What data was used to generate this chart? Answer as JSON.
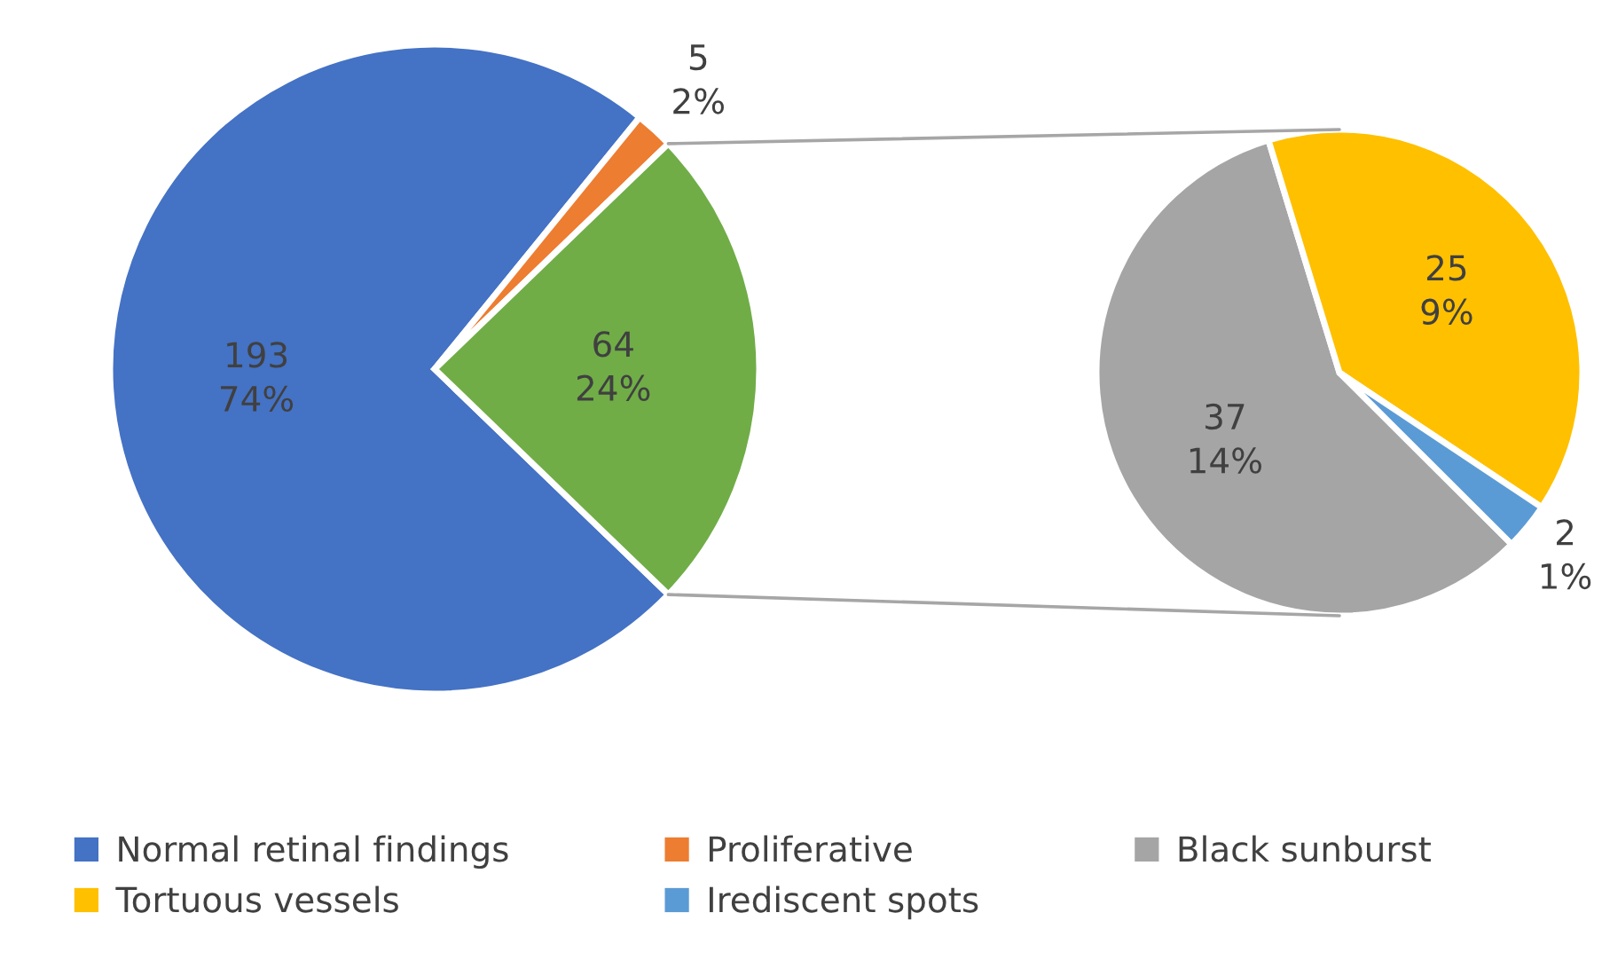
{
  "chart_data": [
    {
      "type": "pie",
      "categories": [
        "Normal retinal findings",
        "Proliferative",
        null
      ],
      "values": [
        193,
        5,
        64
      ],
      "colors": [
        "#4472c4",
        "#ed7d31",
        "#70ad47"
      ],
      "value_labels": [
        "193\n74%",
        "5\n2%",
        "64\n24%"
      ],
      "legend": "bottom"
    },
    {
      "type": "pie",
      "categories": [
        "Black sunburst",
        "Tortuous vessels",
        "Irediscent spots"
      ],
      "values": [
        37,
        25,
        2
      ],
      "colors": [
        "#a5a5a5",
        "#ffc000",
        "#5b9bd5"
      ],
      "value_labels": [
        "37\n14%",
        "25\n9%",
        "2\n1%"
      ],
      "legend": "bottom"
    }
  ]
}
